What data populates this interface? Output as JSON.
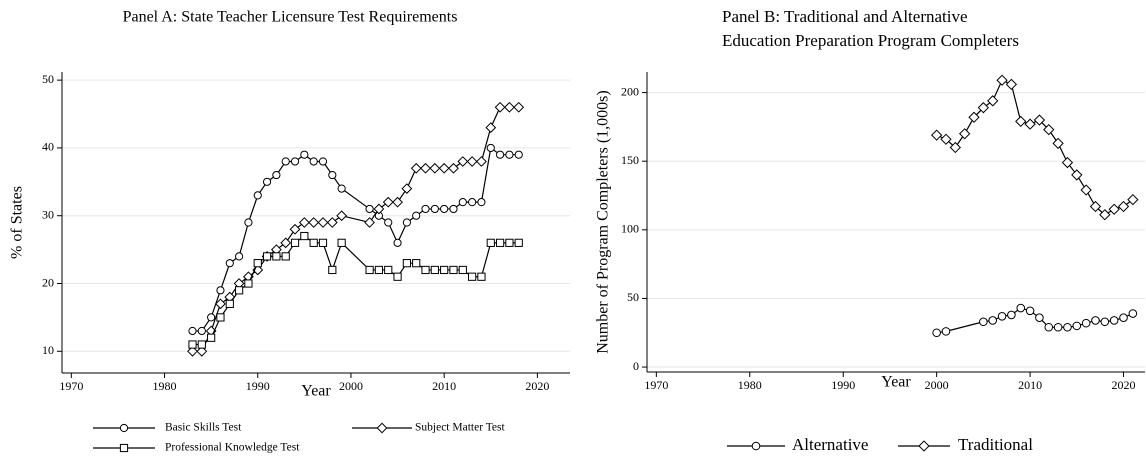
{
  "chart_data": [
    {
      "type": "line",
      "title": [
        "Panel A: State Teacher Licensure Test Requirements"
      ],
      "x_label": "Year",
      "y_label": "% of States",
      "xlim": [
        1969,
        2023.5
      ],
      "xticks": [
        1970,
        1980,
        1990,
        2000,
        2010,
        2020
      ],
      "ylim": [
        6.8,
        51.2
      ],
      "yticks": [
        10,
        20,
        30,
        40,
        50
      ],
      "grid": true,
      "legend": "bottom",
      "series": [
        {
          "name": "Basic Skills Test",
          "color": "#000000",
          "marker": "circle",
          "x": [
            1983,
            1984,
            1985,
            1986,
            1987,
            1988,
            1989,
            1990,
            1991,
            1992,
            1993,
            1994,
            1995,
            1996,
            1997,
            1998,
            1999,
            2002,
            2003,
            2004,
            2005,
            2006,
            2007,
            2008,
            2009,
            2010,
            2011,
            2012,
            2013,
            2014,
            2015,
            2016,
            2017,
            2018
          ],
          "values": [
            13,
            13,
            15,
            19,
            23,
            24,
            29,
            33,
            35,
            36,
            38,
            38,
            39,
            38,
            38,
            36,
            34,
            31,
            30,
            29,
            26,
            29,
            30,
            31,
            31,
            31,
            31,
            32,
            32,
            32,
            40,
            39,
            39,
            39
          ]
        },
        {
          "name": "Subject Matter Test",
          "color": "#000000",
          "marker": "diamond",
          "x": [
            1983,
            1984,
            1985,
            1986,
            1987,
            1988,
            1989,
            1990,
            1991,
            1992,
            1993,
            1994,
            1995,
            1996,
            1997,
            1998,
            1999,
            2002,
            2003,
            2004,
            2005,
            2006,
            2007,
            2008,
            2009,
            2010,
            2011,
            2012,
            2013,
            2014,
            2015,
            2016,
            2017,
            2018
          ],
          "values": [
            10,
            10,
            13,
            17,
            18,
            20,
            21,
            22,
            24,
            25,
            26,
            28,
            29,
            29,
            29,
            29,
            30,
            29,
            31,
            32,
            32,
            34,
            37,
            37,
            37,
            37,
            37,
            38,
            38,
            38,
            43,
            46,
            46,
            46
          ]
        },
        {
          "name": "Professional Knowledge Test",
          "color": "#000000",
          "marker": "square",
          "x": [
            1983,
            1984,
            1985,
            1986,
            1987,
            1988,
            1989,
            1990,
            1991,
            1992,
            1993,
            1994,
            1995,
            1996,
            1997,
            1998,
            1999,
            2002,
            2003,
            2004,
            2005,
            2006,
            2007,
            2008,
            2009,
            2010,
            2011,
            2012,
            2013,
            2014,
            2015,
            2016,
            2017,
            2018
          ],
          "values": [
            11,
            11,
            12,
            15,
            17,
            19,
            20,
            23,
            24,
            24,
            24,
            26,
            27,
            26,
            26,
            22,
            26,
            22,
            22,
            22,
            21,
            23,
            23,
            22,
            22,
            22,
            22,
            22,
            21,
            21,
            26,
            26,
            26,
            26
          ]
        }
      ]
    },
    {
      "type": "line",
      "title": [
        "Panel B: Traditional and Alternative",
        "Education Preparation Program Completers"
      ],
      "x_label": "Year",
      "y_label": "Number of Program Completers (1,000s)",
      "xlim": [
        1969,
        2022.3
      ],
      "xticks": [
        1970,
        1980,
        1990,
        2000,
        2010,
        2020
      ],
      "ylim": [
        -3.6,
        215
      ],
      "yticks": [
        0,
        50,
        100,
        150,
        200
      ],
      "grid": true,
      "legend": "bottom",
      "series": [
        {
          "name": "Alternative",
          "color": "#000000",
          "marker": "circle",
          "x": [
            2000,
            2001,
            2005,
            2006,
            2007,
            2008,
            2009,
            2010,
            2011,
            2012,
            2013,
            2014,
            2015,
            2016,
            2017,
            2018,
            2019,
            2020,
            2021
          ],
          "values": [
            25,
            26,
            33,
            34,
            37,
            38,
            43,
            41,
            36,
            29,
            29,
            29,
            30,
            32,
            34,
            33,
            34,
            36,
            39
          ]
        },
        {
          "name": "Traditional",
          "color": "#000000",
          "marker": "diamond",
          "x": [
            2000,
            2001,
            2002,
            2003,
            2004,
            2005,
            2006,
            2007,
            2008,
            2009,
            2010,
            2011,
            2012,
            2013,
            2014,
            2015,
            2016,
            2017,
            2018,
            2019,
            2020,
            2021
          ],
          "values": [
            169,
            166,
            160,
            170,
            182,
            189,
            194,
            209,
            206,
            179,
            177,
            180,
            173,
            163,
            149,
            140,
            129,
            117,
            111,
            115,
            117,
            122
          ]
        }
      ]
    }
  ]
}
